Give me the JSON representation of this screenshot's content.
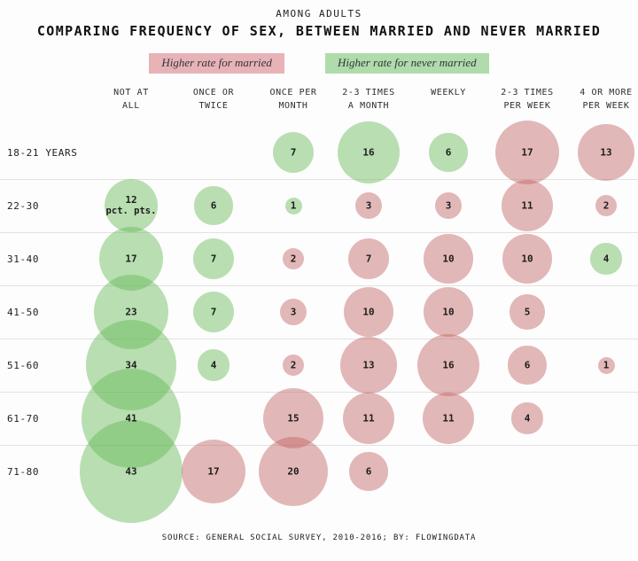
{
  "footer": "SOURCE: GENERAL SOCIAL SURVEY, 2010-2016; BY: FLOWINGDATA",
  "legend": {
    "items": [
      {
        "label": "Higher rate for married",
        "color": "#e7b3b6"
      },
      {
        "label": "Higher rate for never married",
        "color": "#afdcaa"
      }
    ]
  },
  "chart_data": {
    "type": "bubble",
    "subtitle": "AMONG ADULTS",
    "title": "COMPARING FREQUENCY OF SEX, BETWEEN MARRIED AND NEVER MARRIED",
    "unit": "pct. pts.",
    "legend_position": "top-center",
    "grid": "horizontal-row-dividers",
    "colors": {
      "married_fill": "rgba(193,97,97,0.45)",
      "never_fill": "rgba(100,185,85,0.45)",
      "married_legend": "#e7b3b6",
      "never_legend": "#afdcaa"
    },
    "columns": [
      [
        "NOT AT",
        "ALL"
      ],
      [
        "ONCE OR",
        "TWICE"
      ],
      [
        "ONCE PER",
        "MONTH"
      ],
      [
        "2-3 TIMES",
        "A MONTH"
      ],
      [
        "WEEKLY"
      ],
      [
        "2-3 TIMES",
        "PER WEEK"
      ],
      [
        "4 OR MORE",
        "PER WEEK"
      ]
    ],
    "rows": [
      "18-21 YEARS",
      "22-30",
      "31-40",
      "41-50",
      "51-60",
      "61-70",
      "71-80"
    ],
    "cells": [
      [
        null,
        null,
        {
          "value": 7,
          "higher": "never"
        },
        {
          "value": 16,
          "higher": "never"
        },
        {
          "value": 6,
          "higher": "never"
        },
        {
          "value": 17,
          "higher": "married"
        },
        {
          "value": 13,
          "higher": "married"
        }
      ],
      [
        {
          "value": 12,
          "higher": "never",
          "note": "pct. pts."
        },
        {
          "value": 6,
          "higher": "never"
        },
        {
          "value": 1,
          "higher": "never"
        },
        {
          "value": 3,
          "higher": "married"
        },
        {
          "value": 3,
          "higher": "married"
        },
        {
          "value": 11,
          "higher": "married"
        },
        {
          "value": 2,
          "higher": "married"
        }
      ],
      [
        {
          "value": 17,
          "higher": "never"
        },
        {
          "value": 7,
          "higher": "never"
        },
        {
          "value": 2,
          "higher": "married"
        },
        {
          "value": 7,
          "higher": "married"
        },
        {
          "value": 10,
          "higher": "married"
        },
        {
          "value": 10,
          "higher": "married"
        },
        {
          "value": 4,
          "higher": "never"
        }
      ],
      [
        {
          "value": 23,
          "higher": "never"
        },
        {
          "value": 7,
          "higher": "never"
        },
        {
          "value": 3,
          "higher": "married"
        },
        {
          "value": 10,
          "higher": "married"
        },
        {
          "value": 10,
          "higher": "married"
        },
        {
          "value": 5,
          "higher": "married"
        },
        null
      ],
      [
        {
          "value": 34,
          "higher": "never"
        },
        {
          "value": 4,
          "higher": "never"
        },
        {
          "value": 2,
          "higher": "married"
        },
        {
          "value": 13,
          "higher": "married"
        },
        {
          "value": 16,
          "higher": "married"
        },
        {
          "value": 6,
          "higher": "married"
        },
        {
          "value": 1,
          "higher": "married"
        }
      ],
      [
        {
          "value": 41,
          "higher": "never"
        },
        null,
        {
          "value": 15,
          "higher": "married"
        },
        {
          "value": 11,
          "higher": "married"
        },
        {
          "value": 11,
          "higher": "married"
        },
        {
          "value": 4,
          "higher": "married"
        },
        null
      ],
      [
        {
          "value": 43,
          "higher": "never"
        },
        {
          "value": 17,
          "higher": "married"
        },
        {
          "value": 20,
          "higher": "married"
        },
        {
          "value": 6,
          "higher": "married"
        },
        null,
        null,
        null
      ]
    ]
  }
}
